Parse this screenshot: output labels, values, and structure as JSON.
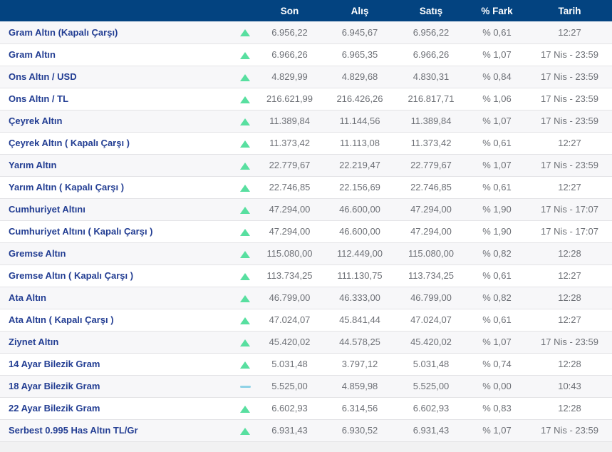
{
  "table": {
    "columns": {
      "name": "",
      "arrow": "",
      "son": "Son",
      "alis": "Alış",
      "satis": "Satış",
      "fark": "% Fark",
      "tarih": "Tarih"
    },
    "rows": [
      {
        "name": "Gram Altın (Kapalı Çarşı)",
        "direction": "up",
        "son": "6.956,22",
        "alis": "6.945,67",
        "satis": "6.956,22",
        "fark": "% 0,61",
        "tarih": "12:27"
      },
      {
        "name": "Gram Altın",
        "direction": "up",
        "son": "6.966,26",
        "alis": "6.965,35",
        "satis": "6.966,26",
        "fark": "% 1,07",
        "tarih": "17 Nis - 23:59"
      },
      {
        "name": "Ons Altın / USD",
        "direction": "up",
        "son": "4.829,99",
        "alis": "4.829,68",
        "satis": "4.830,31",
        "fark": "% 0,84",
        "tarih": "17 Nis - 23:59"
      },
      {
        "name": "Ons Altın / TL",
        "direction": "up",
        "son": "216.621,99",
        "alis": "216.426,26",
        "satis": "216.817,71",
        "fark": "% 1,06",
        "tarih": "17 Nis - 23:59"
      },
      {
        "name": "Çeyrek Altın",
        "direction": "up",
        "son": "11.389,84",
        "alis": "11.144,56",
        "satis": "11.389,84",
        "fark": "% 1,07",
        "tarih": "17 Nis - 23:59"
      },
      {
        "name": "Çeyrek Altın ( Kapalı Çarşı )",
        "direction": "up",
        "son": "11.373,42",
        "alis": "11.113,08",
        "satis": "11.373,42",
        "fark": "% 0,61",
        "tarih": "12:27"
      },
      {
        "name": "Yarım Altın",
        "direction": "up",
        "son": "22.779,67",
        "alis": "22.219,47",
        "satis": "22.779,67",
        "fark": "% 1,07",
        "tarih": "17 Nis - 23:59"
      },
      {
        "name": "Yarım Altın ( Kapalı Çarşı )",
        "direction": "up",
        "son": "22.746,85",
        "alis": "22.156,69",
        "satis": "22.746,85",
        "fark": "% 0,61",
        "tarih": "12:27"
      },
      {
        "name": "Cumhuriyet Altını",
        "direction": "up",
        "son": "47.294,00",
        "alis": "46.600,00",
        "satis": "47.294,00",
        "fark": "% 1,90",
        "tarih": "17 Nis - 17:07"
      },
      {
        "name": "Cumhuriyet Altını ( Kapalı Çarşı )",
        "direction": "up",
        "son": "47.294,00",
        "alis": "46.600,00",
        "satis": "47.294,00",
        "fark": "% 1,90",
        "tarih": "17 Nis - 17:07"
      },
      {
        "name": "Gremse Altın",
        "direction": "up",
        "son": "115.080,00",
        "alis": "112.449,00",
        "satis": "115.080,00",
        "fark": "% 0,82",
        "tarih": "12:28"
      },
      {
        "name": "Gremse Altın ( Kapalı Çarşı )",
        "direction": "up",
        "son": "113.734,25",
        "alis": "111.130,75",
        "satis": "113.734,25",
        "fark": "% 0,61",
        "tarih": "12:27"
      },
      {
        "name": "Ata Altın",
        "direction": "up",
        "son": "46.799,00",
        "alis": "46.333,00",
        "satis": "46.799,00",
        "fark": "% 0,82",
        "tarih": "12:28"
      },
      {
        "name": "Ata Altın ( Kapalı Çarşı )",
        "direction": "up",
        "son": "47.024,07",
        "alis": "45.841,44",
        "satis": "47.024,07",
        "fark": "% 0,61",
        "tarih": "12:27"
      },
      {
        "name": "Ziynet Altın",
        "direction": "up",
        "son": "45.420,02",
        "alis": "44.578,25",
        "satis": "45.420,02",
        "fark": "% 1,07",
        "tarih": "17 Nis - 23:59"
      },
      {
        "name": "14 Ayar Bilezik Gram",
        "direction": "up",
        "son": "5.031,48",
        "alis": "3.797,12",
        "satis": "5.031,48",
        "fark": "% 0,74",
        "tarih": "12:28"
      },
      {
        "name": "18 Ayar Bilezik Gram",
        "direction": "flat",
        "son": "5.525,00",
        "alis": "4.859,98",
        "satis": "5.525,00",
        "fark": "% 0,00",
        "tarih": "10:43"
      },
      {
        "name": "22 Ayar Bilezik Gram",
        "direction": "up",
        "son": "6.602,93",
        "alis": "6.314,56",
        "satis": "6.602,93",
        "fark": "% 0,83",
        "tarih": "12:28"
      },
      {
        "name": "Serbest 0.995 Has Altın TL/Gr",
        "direction": "up",
        "son": "6.931,43",
        "alis": "6.930,52",
        "satis": "6.931,43",
        "fark": "% 1,07",
        "tarih": "17 Nis - 23:59"
      }
    ]
  },
  "colors": {
    "header_bg": "#034380",
    "name_text": "#233e93",
    "up_arrow": "#58dfa0",
    "flat_dash": "#8fd2e6",
    "stripe": "#f7f7f9",
    "footer_bg": "#f1f1f2"
  }
}
